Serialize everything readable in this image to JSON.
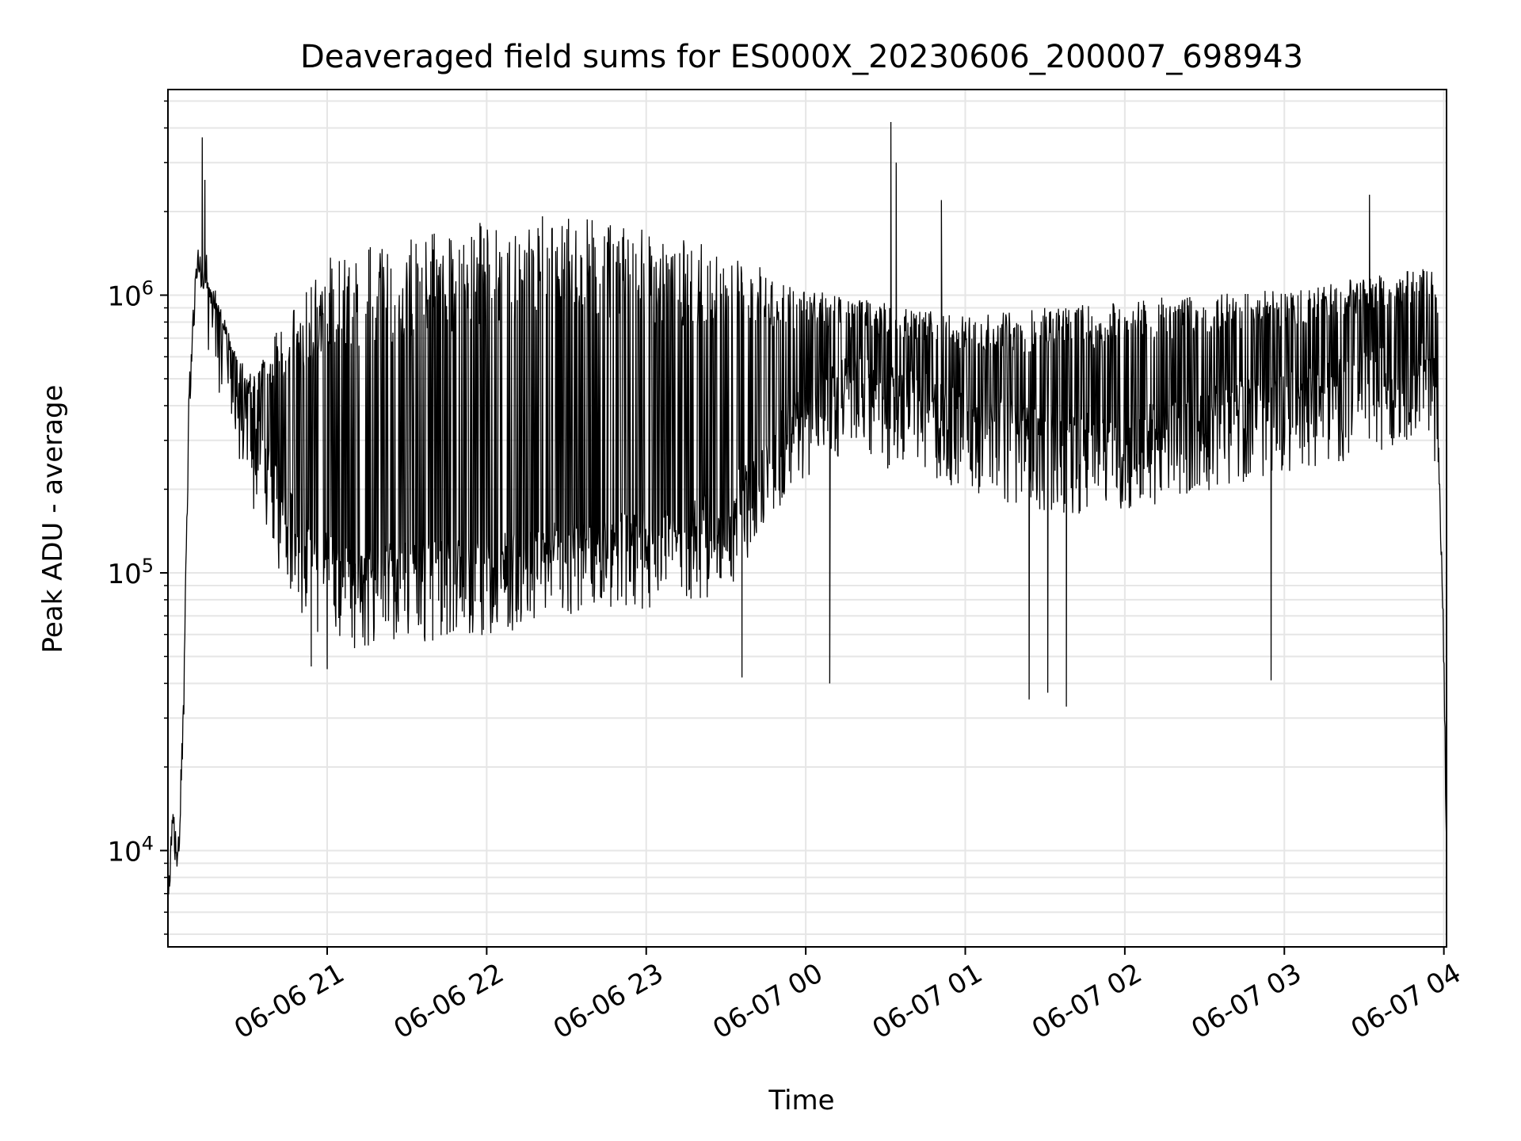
{
  "chart_data": {
    "type": "line",
    "title": "Deaveraged field sums for ES000X_20230606_200007_698943",
    "xlabel": "Time",
    "ylabel": "Peak ADU - average",
    "yscale": "log",
    "ylim": [
      4500,
      5500000
    ],
    "xlim": [
      "2023-06-06 20:00:07",
      "2023-06-07 04:01:00"
    ],
    "xticks": [
      {
        "t": "2023-06-06 21:00",
        "label": "06-06 21"
      },
      {
        "t": "2023-06-06 22:00",
        "label": "06-06 22"
      },
      {
        "t": "2023-06-06 23:00",
        "label": "06-06 23"
      },
      {
        "t": "2023-06-07 00:00",
        "label": "06-07 00"
      },
      {
        "t": "2023-06-07 01:00",
        "label": "06-07 01"
      },
      {
        "t": "2023-06-07 02:00",
        "label": "06-07 02"
      },
      {
        "t": "2023-06-07 03:00",
        "label": "06-07 03"
      },
      {
        "t": "2023-06-07 04:00",
        "label": "06-07 04"
      }
    ],
    "yticks": [
      {
        "value": 10000,
        "label": "10^4"
      },
      {
        "value": 100000,
        "label": "10^5"
      },
      {
        "value": 1000000,
        "label": "10^6"
      }
    ],
    "grid": true,
    "line_color": "#000000",
    "series": [
      {
        "baseline": [
          [
            "2023-06-06 20:00",
            6000
          ],
          [
            "2023-06-06 20:02",
            12000
          ],
          [
            "2023-06-06 20:04",
            9000
          ],
          [
            "2023-06-06 20:06",
            30000
          ],
          [
            "2023-06-06 20:08",
            400000
          ],
          [
            "2023-06-06 20:11",
            1300000
          ],
          [
            "2023-06-06 20:14",
            1100000
          ],
          [
            "2023-06-06 20:18",
            700000
          ],
          [
            "2023-06-06 20:25",
            400000
          ],
          [
            "2023-06-06 20:35",
            220000
          ],
          [
            "2023-06-06 20:45",
            130000
          ],
          [
            "2023-06-06 20:55",
            95000
          ],
          [
            "2023-06-06 21:10",
            80000
          ],
          [
            "2023-06-06 21:30",
            85000
          ],
          [
            "2023-06-06 22:00",
            90000
          ],
          [
            "2023-06-06 22:30",
            100000
          ],
          [
            "2023-06-06 23:00",
            110000
          ],
          [
            "2023-06-06 23:30",
            130000
          ],
          [
            "2023-06-06 23:50",
            250000
          ],
          [
            "2023-06-07 00:10",
            400000
          ],
          [
            "2023-06-07 00:40",
            350000
          ],
          [
            "2023-06-07 01:00",
            300000
          ],
          [
            "2023-06-07 01:30",
            250000
          ],
          [
            "2023-06-07 02:00",
            250000
          ],
          [
            "2023-06-07 02:30",
            300000
          ],
          [
            "2023-06-07 03:00",
            350000
          ],
          [
            "2023-06-07 03:30",
            400000
          ],
          [
            "2023-06-07 03:55",
            500000
          ],
          [
            "2023-06-07 03:58",
            300000
          ],
          [
            "2023-06-07 04:00",
            50000
          ],
          [
            "2023-06-07 04:01",
            10000
          ]
        ],
        "peak_envelope": [
          [
            "2023-06-06 20:10",
            1500000
          ],
          [
            "2023-06-06 20:30",
            500000
          ],
          [
            "2023-06-06 21:00",
            1200000
          ],
          [
            "2023-06-06 22:00",
            1600000
          ],
          [
            "2023-06-06 22:30",
            1700000
          ],
          [
            "2023-06-06 23:00",
            1500000
          ],
          [
            "2023-06-06 23:30",
            1300000
          ],
          [
            "2023-06-07 00:00",
            1000000
          ],
          [
            "2023-06-07 01:00",
            800000
          ],
          [
            "2023-06-07 02:00",
            900000
          ],
          [
            "2023-06-07 03:00",
            1000000
          ],
          [
            "2023-06-07 03:55",
            1200000
          ]
        ],
        "spikes": [
          [
            "2023-06-06 20:13",
            3700000
          ],
          [
            "2023-06-06 20:14",
            2600000
          ],
          [
            "2023-06-07 00:32",
            4200000
          ],
          [
            "2023-06-07 00:34",
            3000000
          ],
          [
            "2023-06-07 00:51",
            2200000
          ],
          [
            "2023-06-07 03:32",
            2300000
          ]
        ],
        "dips": [
          [
            "2023-06-06 20:54",
            46000
          ],
          [
            "2023-06-06 21:00",
            45000
          ],
          [
            "2023-06-06 23:36",
            42000
          ],
          [
            "2023-06-07 00:09",
            40000
          ],
          [
            "2023-06-07 01:24",
            35000
          ],
          [
            "2023-06-07 01:31",
            37000
          ],
          [
            "2023-06-07 01:38",
            33000
          ],
          [
            "2023-06-07 02:55",
            41000
          ]
        ]
      }
    ]
  }
}
